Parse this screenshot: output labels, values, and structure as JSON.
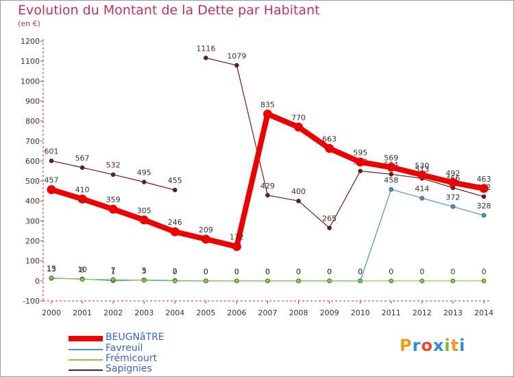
{
  "chart_data": {
    "type": "line",
    "title": "Evolution du Montant de la Dette par Habitant",
    "ylabel": "(en €)",
    "xlabel": "",
    "x": [
      "2000",
      "2001",
      "2002",
      "2003",
      "2004",
      "2005",
      "2006",
      "2007",
      "2008",
      "2009",
      "2010",
      "2011",
      "2012",
      "2013",
      "2014"
    ],
    "ylim": [
      -100,
      1200
    ],
    "yticks": [
      -100,
      0,
      100,
      200,
      300,
      400,
      500,
      600,
      700,
      800,
      900,
      1000,
      1100,
      1200
    ],
    "grid": false,
    "series": [
      {
        "name": "Sapignies",
        "color": "#6b1a1a",
        "values": [
          601,
          567,
          532,
          495,
          455,
          null,
          null,
          null,
          null,
          null,
          null,
          null,
          null,
          null,
          null
        ],
        "labels": [
          "601",
          "567",
          "532",
          "495",
          "455",
          "",
          "",
          "",
          "",
          "",
          "",
          "",
          "",
          "",
          ""
        ]
      },
      {
        "name": "Sapignies",
        "color": "#6b1a1a",
        "values": [
          null,
          null,
          null,
          null,
          null,
          1116,
          1079,
          429,
          400,
          265,
          550,
          534,
          513,
          466,
          422
        ],
        "labels": [
          "",
          "",
          "",
          "",
          "",
          "1116",
          "1079",
          "429",
          "400",
          "265",
          "550",
          "534",
          "513",
          "466",
          "422"
        ]
      },
      {
        "name": "Favreuil",
        "color": "#4a90c8",
        "values": [
          13,
          10,
          1,
          5,
          2,
          0,
          0,
          0,
          0,
          0,
          0,
          458,
          414,
          372,
          328
        ],
        "labels": [
          "13",
          "10",
          "1",
          "5",
          "2",
          "0",
          "0",
          "0",
          "0",
          "0",
          "0",
          "458",
          "414",
          "372",
          "328"
        ]
      },
      {
        "name": "Frémicourt",
        "color": "#7ccc3c",
        "values": [
          15,
          8,
          7,
          3,
          0,
          0,
          0,
          0,
          0,
          0,
          0,
          0,
          0,
          0,
          0
        ],
        "labels": [
          "15",
          "8",
          "7",
          "3",
          "0",
          "0",
          "0",
          "0",
          "0",
          "0",
          "0",
          "0",
          "0",
          "0",
          "0"
        ]
      },
      {
        "name": "BEUGNâTRE",
        "color": "#ee0000",
        "values": [
          457,
          410,
          359,
          305,
          246,
          209,
          172,
          835,
          770,
          663,
          595,
          569,
          530,
          492,
          463
        ],
        "labels": [
          "457",
          "410",
          "359",
          "305",
          "246",
          "209",
          "172",
          "835",
          "770",
          "663",
          "595",
          "569",
          "530",
          "492",
          "463"
        ]
      }
    ]
  },
  "legend": [
    {
      "name": "BEUGNâTRE",
      "color": "#ee0000",
      "width": "thick"
    },
    {
      "name": "Favreuil",
      "color": "#4a90c8",
      "width": "thin"
    },
    {
      "name": "Frémicourt",
      "color": "#7ccc3c",
      "width": "thin"
    },
    {
      "name": "Sapignies",
      "color": "#6b1a1a",
      "width": "thin"
    }
  ],
  "logo": {
    "text": "Proxiti"
  }
}
